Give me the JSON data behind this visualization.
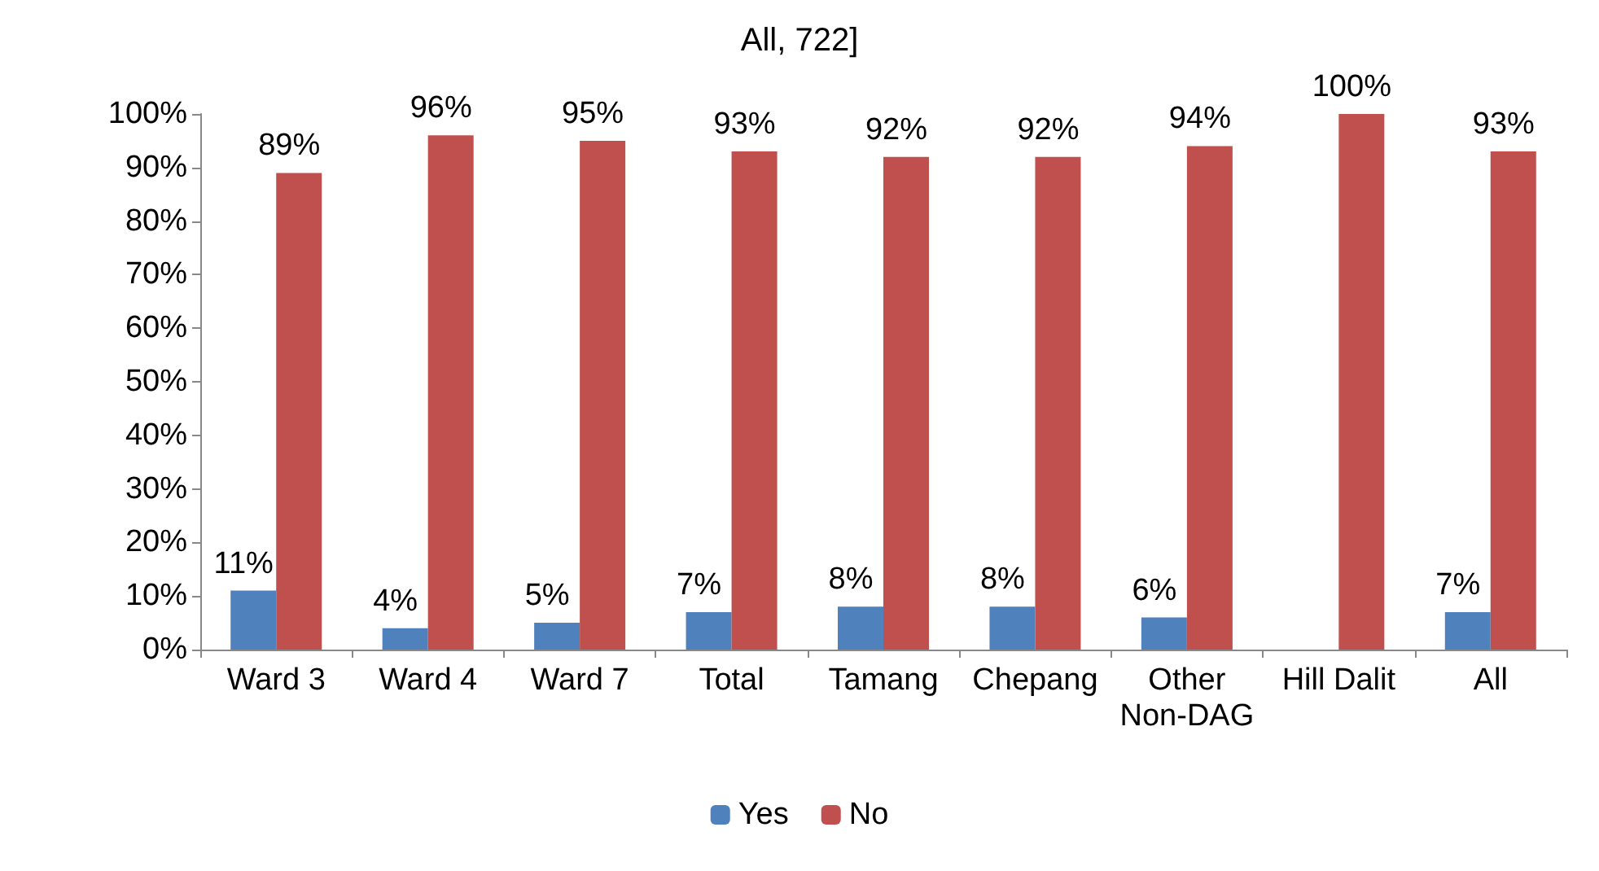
{
  "chart_data": {
    "type": "bar",
    "title": "All, 722]",
    "categories": [
      "Ward 3",
      "Ward 4",
      "Ward 7",
      "Total",
      "Tamang",
      "Chepang",
      "Other\nNon-DAG",
      "Hill Dalit",
      "All"
    ],
    "series": [
      {
        "name": "Yes",
        "color": "#4f81bd",
        "values": [
          11,
          4,
          5,
          7,
          8,
          8,
          6,
          0,
          7
        ],
        "value_labels": [
          "11%",
          "4%",
          "5%",
          "7%",
          "8%",
          "8%",
          "6%",
          null,
          "7%"
        ]
      },
      {
        "name": "No",
        "color": "#c0504d",
        "values": [
          89,
          96,
          95,
          93,
          92,
          92,
          94,
          100,
          93
        ],
        "value_labels": [
          "89%",
          "96%",
          "95%",
          "93%",
          "92%",
          "92%",
          "94%",
          "100%",
          "93%"
        ]
      }
    ],
    "ylim": [
      0,
      100
    ],
    "yticks": [
      {
        "value": 0,
        "label": "0%"
      },
      {
        "value": 10,
        "label": "10%"
      },
      {
        "value": 20,
        "label": "20%"
      },
      {
        "value": 30,
        "label": "30%"
      },
      {
        "value": 40,
        "label": "40%"
      },
      {
        "value": 50,
        "label": "50%"
      },
      {
        "value": 60,
        "label": "60%"
      },
      {
        "value": 70,
        "label": "70%"
      },
      {
        "value": 80,
        "label": "80%"
      },
      {
        "value": 90,
        "label": "90%"
      },
      {
        "value": 100,
        "label": "100%"
      }
    ],
    "grid": false,
    "legend": "bottom"
  }
}
